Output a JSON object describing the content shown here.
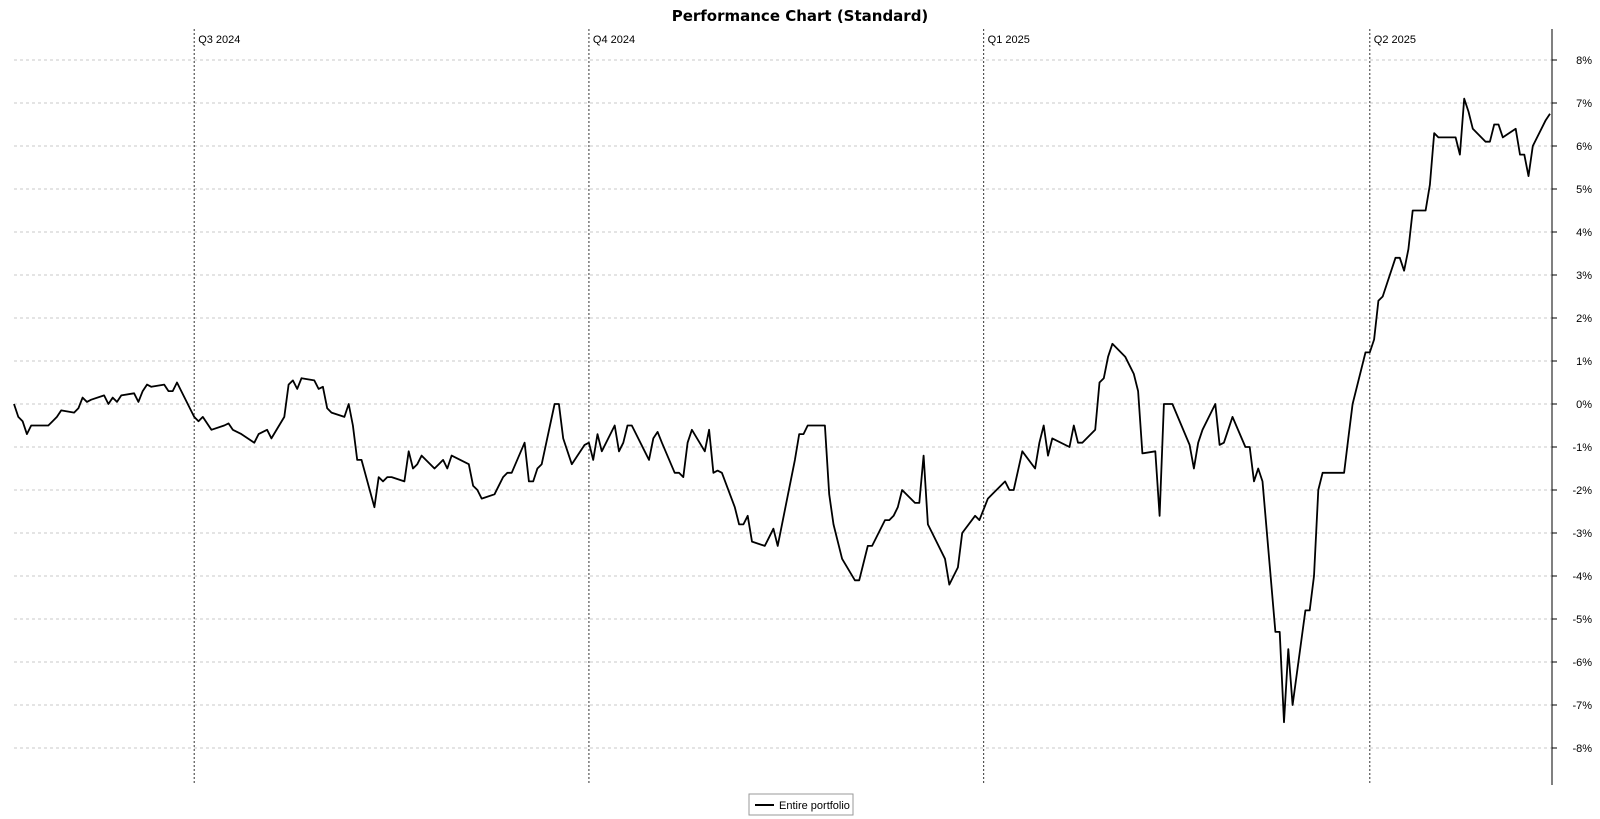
{
  "chart_data": {
    "type": "line",
    "title": "Performance Chart (Standard)",
    "xlabel": "",
    "ylabel": "",
    "ylim": [
      -9,
      8.5
    ],
    "y_ticks": [
      "8%",
      "7%",
      "6%",
      "5%",
      "4%",
      "3%",
      "2%",
      "1%",
      "0%",
      "-1%",
      "-2%",
      "-3%",
      "-4%",
      "-5%",
      "-6%",
      "-7%",
      "-8%"
    ],
    "y_tick_values": [
      8,
      7,
      6,
      5,
      4,
      3,
      2,
      1,
      0,
      -1,
      -2,
      -3,
      -4,
      -5,
      -6,
      -7,
      -8
    ],
    "y_axis_position": "right",
    "grid": true,
    "legend": {
      "placement": "bottom-center",
      "entries": [
        "Entire portfolio"
      ]
    },
    "x_range": [
      "2024-05-20",
      "2025-06-30"
    ],
    "quarter_markers": [
      {
        "label": "Q3 2024",
        "date": "2024-07-01"
      },
      {
        "label": "Q4 2024",
        "date": "2024-10-01"
      },
      {
        "label": "Q1 2025",
        "date": "2025-01-01"
      },
      {
        "label": "Q2 2025",
        "date": "2025-04-01"
      }
    ],
    "series": [
      {
        "name": "Entire portfolio",
        "color": "#000000",
        "points": [
          [
            "2024-05-20",
            0.0
          ],
          [
            "2024-05-21",
            -0.3
          ],
          [
            "2024-05-22",
            -0.4
          ],
          [
            "2024-05-23",
            -0.7
          ],
          [
            "2024-05-24",
            -0.5
          ],
          [
            "2024-05-27",
            -0.5
          ],
          [
            "2024-05-28",
            -0.5
          ],
          [
            "2024-05-29",
            -0.4
          ],
          [
            "2024-05-30",
            -0.3
          ],
          [
            "2024-05-31",
            -0.15
          ],
          [
            "2024-06-03",
            -0.2
          ],
          [
            "2024-06-04",
            -0.1
          ],
          [
            "2024-06-05",
            0.15
          ],
          [
            "2024-06-06",
            0.05
          ],
          [
            "2024-06-07",
            0.1
          ],
          [
            "2024-06-10",
            0.2
          ],
          [
            "2024-06-11",
            0.0
          ],
          [
            "2024-06-12",
            0.15
          ],
          [
            "2024-06-13",
            0.05
          ],
          [
            "2024-06-14",
            0.2
          ],
          [
            "2024-06-17",
            0.25
          ],
          [
            "2024-06-18",
            0.05
          ],
          [
            "2024-06-19",
            0.3
          ],
          [
            "2024-06-20",
            0.45
          ],
          [
            "2024-06-21",
            0.4
          ],
          [
            "2024-06-24",
            0.45
          ],
          [
            "2024-06-25",
            0.3
          ],
          [
            "2024-06-26",
            0.3
          ],
          [
            "2024-06-27",
            0.5
          ],
          [
            "2024-06-28",
            0.3
          ],
          [
            "2024-07-01",
            -0.3
          ],
          [
            "2024-07-02",
            -0.4
          ],
          [
            "2024-07-03",
            -0.3
          ],
          [
            "2024-07-05",
            -0.6
          ],
          [
            "2024-07-08",
            -0.5
          ],
          [
            "2024-07-09",
            -0.45
          ],
          [
            "2024-07-10",
            -0.6
          ],
          [
            "2024-07-11",
            -0.65
          ],
          [
            "2024-07-12",
            -0.7
          ],
          [
            "2024-07-15",
            -0.9
          ],
          [
            "2024-07-16",
            -0.7
          ],
          [
            "2024-07-17",
            -0.65
          ],
          [
            "2024-07-18",
            -0.6
          ],
          [
            "2024-07-19",
            -0.8
          ],
          [
            "2024-07-22",
            -0.3
          ],
          [
            "2024-07-23",
            0.45
          ],
          [
            "2024-07-24",
            0.55
          ],
          [
            "2024-07-25",
            0.35
          ],
          [
            "2024-07-26",
            0.6
          ],
          [
            "2024-07-29",
            0.55
          ],
          [
            "2024-07-30",
            0.35
          ],
          [
            "2024-07-31",
            0.4
          ],
          [
            "2024-08-01",
            -0.1
          ],
          [
            "2024-08-02",
            -0.2
          ],
          [
            "2024-08-05",
            -0.3
          ],
          [
            "2024-08-06",
            0.0
          ],
          [
            "2024-08-07",
            -0.5
          ],
          [
            "2024-08-08",
            -1.3
          ],
          [
            "2024-08-09",
            -1.3
          ],
          [
            "2024-08-12",
            -2.4
          ],
          [
            "2024-08-13",
            -1.7
          ],
          [
            "2024-08-14",
            -1.8
          ],
          [
            "2024-08-15",
            -1.7
          ],
          [
            "2024-08-16",
            -1.7
          ],
          [
            "2024-08-19",
            -1.8
          ],
          [
            "2024-08-20",
            -1.1
          ],
          [
            "2024-08-21",
            -1.5
          ],
          [
            "2024-08-22",
            -1.4
          ],
          [
            "2024-08-23",
            -1.2
          ],
          [
            "2024-08-26",
            -1.5
          ],
          [
            "2024-08-27",
            -1.4
          ],
          [
            "2024-08-28",
            -1.3
          ],
          [
            "2024-08-29",
            -1.5
          ],
          [
            "2024-08-30",
            -1.2
          ],
          [
            "2024-09-03",
            -1.4
          ],
          [
            "2024-09-04",
            -1.9
          ],
          [
            "2024-09-05",
            -2.0
          ],
          [
            "2024-09-06",
            -2.2
          ],
          [
            "2024-09-09",
            -2.1
          ],
          [
            "2024-09-10",
            -1.9
          ],
          [
            "2024-09-11",
            -1.7
          ],
          [
            "2024-09-12",
            -1.6
          ],
          [
            "2024-09-13",
            -1.6
          ],
          [
            "2024-09-16",
            -0.9
          ],
          [
            "2024-09-17",
            -1.8
          ],
          [
            "2024-09-18",
            -1.8
          ],
          [
            "2024-09-19",
            -1.5
          ],
          [
            "2024-09-20",
            -1.4
          ],
          [
            "2024-09-23",
            0.0
          ],
          [
            "2024-09-24",
            0.0
          ],
          [
            "2024-09-25",
            -0.8
          ],
          [
            "2024-09-26",
            -1.1
          ],
          [
            "2024-09-27",
            -1.4
          ],
          [
            "2024-09-30",
            -0.95
          ],
          [
            "2024-10-01",
            -0.9
          ],
          [
            "2024-10-02",
            -1.3
          ],
          [
            "2024-10-03",
            -0.7
          ],
          [
            "2024-10-04",
            -1.1
          ],
          [
            "2024-10-07",
            -0.5
          ],
          [
            "2024-10-08",
            -1.1
          ],
          [
            "2024-10-09",
            -0.9
          ],
          [
            "2024-10-10",
            -0.5
          ],
          [
            "2024-10-11",
            -0.5
          ],
          [
            "2024-10-14",
            -1.1
          ],
          [
            "2024-10-15",
            -1.3
          ],
          [
            "2024-10-16",
            -0.8
          ],
          [
            "2024-10-17",
            -0.65
          ],
          [
            "2024-10-18",
            -0.9
          ],
          [
            "2024-10-21",
            -1.6
          ],
          [
            "2024-10-22",
            -1.6
          ],
          [
            "2024-10-23",
            -1.7
          ],
          [
            "2024-10-24",
            -0.9
          ],
          [
            "2024-10-25",
            -0.6
          ],
          [
            "2024-10-28",
            -1.1
          ],
          [
            "2024-10-29",
            -0.6
          ],
          [
            "2024-10-30",
            -1.6
          ],
          [
            "2024-10-31",
            -1.55
          ],
          [
            "2024-11-01",
            -1.6
          ],
          [
            "2024-11-04",
            -2.4
          ],
          [
            "2024-11-05",
            -2.8
          ],
          [
            "2024-11-06",
            -2.8
          ],
          [
            "2024-11-07",
            -2.6
          ],
          [
            "2024-11-08",
            -3.2
          ],
          [
            "2024-11-11",
            -3.3
          ],
          [
            "2024-11-12",
            -3.1
          ],
          [
            "2024-11-13",
            -2.9
          ],
          [
            "2024-11-14",
            -3.3
          ],
          [
            "2024-11-15",
            -2.8
          ],
          [
            "2024-11-18",
            -1.3
          ],
          [
            "2024-11-19",
            -0.7
          ],
          [
            "2024-11-20",
            -0.7
          ],
          [
            "2024-11-21",
            -0.5
          ],
          [
            "2024-11-22",
            -0.5
          ],
          [
            "2024-11-25",
            -0.5
          ],
          [
            "2024-11-26",
            -2.1
          ],
          [
            "2024-11-27",
            -2.8
          ],
          [
            "2024-11-29",
            -3.6
          ],
          [
            "2024-12-02",
            -4.1
          ],
          [
            "2024-12-03",
            -4.1
          ],
          [
            "2024-12-04",
            -3.7
          ],
          [
            "2024-12-05",
            -3.3
          ],
          [
            "2024-12-06",
            -3.3
          ],
          [
            "2024-12-09",
            -2.7
          ],
          [
            "2024-12-10",
            -2.7
          ],
          [
            "2024-12-11",
            -2.6
          ],
          [
            "2024-12-12",
            -2.4
          ],
          [
            "2024-12-13",
            -2.0
          ],
          [
            "2024-12-16",
            -2.3
          ],
          [
            "2024-12-17",
            -2.3
          ],
          [
            "2024-12-18",
            -1.2
          ],
          [
            "2024-12-19",
            -2.8
          ],
          [
            "2024-12-20",
            -3.0
          ],
          [
            "2024-12-23",
            -3.6
          ],
          [
            "2024-12-24",
            -4.2
          ],
          [
            "2024-12-26",
            -3.8
          ],
          [
            "2024-12-27",
            -3.0
          ],
          [
            "2024-12-30",
            -2.6
          ],
          [
            "2024-12-31",
            -2.7
          ],
          [
            "2025-01-02",
            -2.2
          ],
          [
            "2025-01-03",
            -2.1
          ],
          [
            "2025-01-06",
            -1.8
          ],
          [
            "2025-01-07",
            -2.0
          ],
          [
            "2025-01-08",
            -2.0
          ],
          [
            "2025-01-10",
            -1.1
          ],
          [
            "2025-01-13",
            -1.5
          ],
          [
            "2025-01-14",
            -0.9
          ],
          [
            "2025-01-15",
            -0.5
          ],
          [
            "2025-01-16",
            -1.2
          ],
          [
            "2025-01-17",
            -0.8
          ],
          [
            "2025-01-21",
            -1.0
          ],
          [
            "2025-01-22",
            -0.5
          ],
          [
            "2025-01-23",
            -0.9
          ],
          [
            "2025-01-24",
            -0.9
          ],
          [
            "2025-01-27",
            -0.6
          ],
          [
            "2025-01-28",
            0.5
          ],
          [
            "2025-01-29",
            0.6
          ],
          [
            "2025-01-30",
            1.1
          ],
          [
            "2025-01-31",
            1.4
          ],
          [
            "2025-02-03",
            1.1
          ],
          [
            "2025-02-04",
            0.9
          ],
          [
            "2025-02-05",
            0.7
          ],
          [
            "2025-02-06",
            0.3
          ],
          [
            "2025-02-07",
            -1.15
          ],
          [
            "2025-02-10",
            -1.1
          ],
          [
            "2025-02-11",
            -2.6
          ],
          [
            "2025-02-12",
            0.0
          ],
          [
            "2025-02-13",
            0.0
          ],
          [
            "2025-02-14",
            0.0
          ],
          [
            "2025-02-18",
            -0.95
          ],
          [
            "2025-02-19",
            -1.5
          ],
          [
            "2025-02-20",
            -0.9
          ],
          [
            "2025-02-21",
            -0.6
          ],
          [
            "2025-02-24",
            0.0
          ],
          [
            "2025-02-25",
            -0.95
          ],
          [
            "2025-02-26",
            -0.9
          ],
          [
            "2025-02-27",
            -0.6
          ],
          [
            "2025-02-28",
            -0.3
          ],
          [
            "2025-03-03",
            -1.0
          ],
          [
            "2025-03-04",
            -1.0
          ],
          [
            "2025-03-05",
            -1.8
          ],
          [
            "2025-03-06",
            -1.5
          ],
          [
            "2025-03-07",
            -1.8
          ],
          [
            "2025-03-10",
            -5.3
          ],
          [
            "2025-03-11",
            -5.3
          ],
          [
            "2025-03-12",
            -7.4
          ],
          [
            "2025-03-13",
            -5.7
          ],
          [
            "2025-03-14",
            -7.0
          ],
          [
            "2025-03-17",
            -4.8
          ],
          [
            "2025-03-18",
            -4.8
          ],
          [
            "2025-03-19",
            -4.0
          ],
          [
            "2025-03-20",
            -2.0
          ],
          [
            "2025-03-21",
            -1.6
          ],
          [
            "2025-03-24",
            -1.6
          ],
          [
            "2025-03-25",
            -1.6
          ],
          [
            "2025-03-26",
            -1.6
          ],
          [
            "2025-03-27",
            -0.8
          ],
          [
            "2025-03-28",
            0.0
          ],
          [
            "2025-03-31",
            1.2
          ],
          [
            "2025-04-01",
            1.2
          ],
          [
            "2025-04-02",
            1.5
          ],
          [
            "2025-04-03",
            2.4
          ],
          [
            "2025-04-04",
            2.5
          ],
          [
            "2025-04-07",
            3.4
          ],
          [
            "2025-04-08",
            3.4
          ],
          [
            "2025-04-09",
            3.1
          ],
          [
            "2025-04-10",
            3.6
          ],
          [
            "2025-04-11",
            4.5
          ],
          [
            "2025-04-14",
            4.5
          ],
          [
            "2025-04-15",
            5.1
          ],
          [
            "2025-04-16",
            6.3
          ],
          [
            "2025-04-17",
            6.2
          ],
          [
            "2025-04-21",
            6.2
          ],
          [
            "2025-04-22",
            5.8
          ],
          [
            "2025-04-23",
            7.1
          ],
          [
            "2025-04-24",
            6.8
          ],
          [
            "2025-04-25",
            6.4
          ],
          [
            "2025-04-28",
            6.1
          ],
          [
            "2025-04-29",
            6.1
          ],
          [
            "2025-04-30",
            6.5
          ],
          [
            "2025-05-01",
            6.5
          ],
          [
            "2025-05-02",
            6.2
          ],
          [
            "2025-05-05",
            6.4
          ],
          [
            "2025-05-06",
            5.8
          ],
          [
            "2025-05-07",
            5.8
          ],
          [
            "2025-05-08",
            5.3
          ],
          [
            "2025-05-09",
            6.0
          ],
          [
            "2025-05-12",
            6.6
          ],
          [
            "2025-05-13",
            6.75
          ]
        ]
      }
    ]
  }
}
